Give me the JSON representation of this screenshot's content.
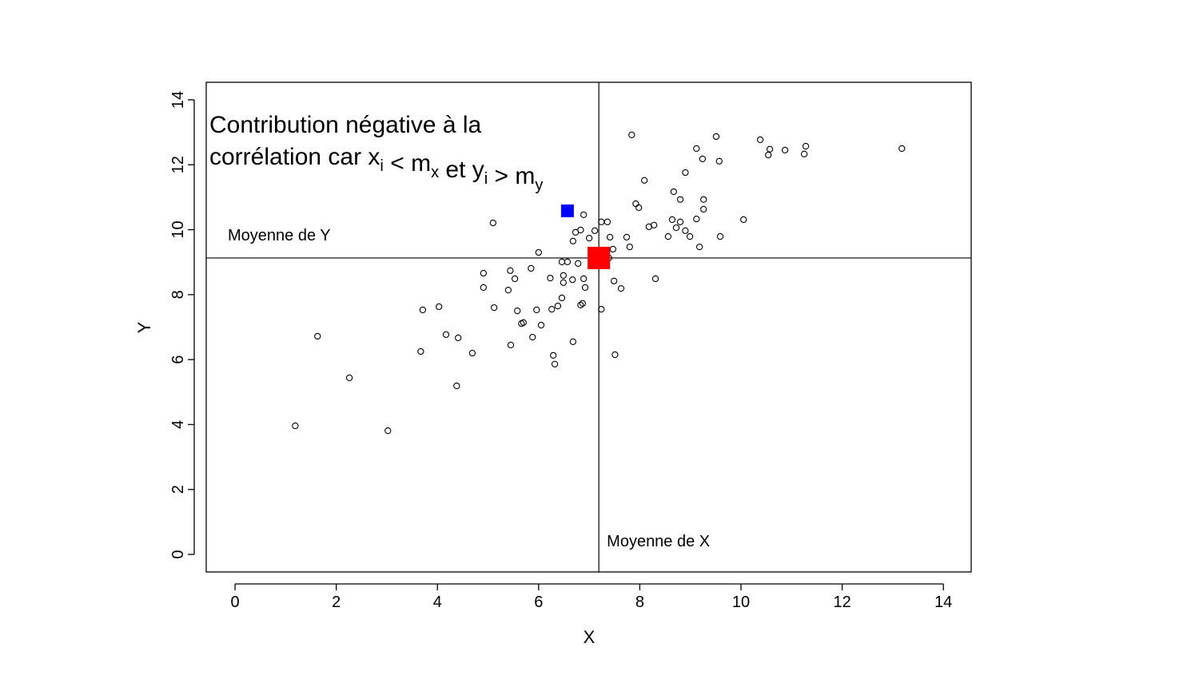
{
  "chart_data": {
    "type": "scatter",
    "x_label": "X",
    "y_label": "Y",
    "xlim": [
      -0.57,
      14.55
    ],
    "ylim": [
      -0.54,
      14.54
    ],
    "xticks": [
      0,
      2,
      4,
      6,
      8,
      10,
      12,
      14
    ],
    "yticks": [
      0,
      2,
      4,
      6,
      8,
      10,
      12,
      14
    ],
    "color": "#000000",
    "x": [
      1.19,
      1.63,
      2.26,
      3.02,
      3.71,
      3.67,
      4.03,
      4.17,
      4.41,
      4.38,
      4.69,
      4.91,
      4.91,
      5.1,
      5.12,
      5.4,
      5.44,
      5.53,
      5.45,
      5.58,
      5.66,
      5.7,
      5.85,
      5.88,
      5.96,
      6.0,
      6.05,
      6.23,
      6.26,
      6.29,
      6.32,
      6.38,
      6.46,
      6.49,
      6.49,
      6.46,
      6.57,
      6.67,
      6.68,
      6.68,
      6.73,
      6.83,
      6.78,
      6.83,
      6.87,
      6.89,
      6.89,
      6.92,
      7.0,
      7.11,
      7.24,
      7.36,
      7.41,
      7.24,
      7.39,
      7.47,
      7.49,
      7.51,
      7.63,
      7.74,
      7.8,
      7.84,
      7.92,
      7.98,
      8.09,
      8.18,
      8.28,
      8.31,
      8.56,
      8.64,
      8.67,
      8.72,
      8.8,
      8.8,
      8.9,
      8.9,
      8.99,
      9.12,
      9.12,
      9.18,
      9.24,
      9.26,
      9.26,
      9.51,
      9.57,
      9.59,
      10.05,
      10.38,
      10.57,
      10.54,
      10.87,
      11.25,
      11.28,
      13.18
    ],
    "values": [
      3.96,
      6.72,
      5.44,
      3.81,
      7.53,
      6.25,
      7.63,
      6.77,
      6.67,
      5.19,
      6.2,
      8.66,
      8.22,
      10.21,
      7.6,
      8.14,
      8.74,
      8.49,
      6.45,
      7.5,
      7.11,
      7.14,
      8.81,
      6.69,
      7.53,
      9.3,
      7.06,
      8.51,
      7.55,
      6.13,
      5.86,
      7.65,
      9.01,
      8.59,
      8.37,
      7.9,
      9.01,
      8.46,
      6.55,
      9.65,
      9.92,
      9.99,
      8.96,
      7.68,
      7.73,
      10.46,
      8.49,
      8.22,
      9.74,
      9.97,
      10.24,
      10.24,
      9.77,
      7.55,
      9.13,
      9.4,
      8.42,
      6.15,
      8.19,
      9.77,
      9.47,
      12.92,
      10.8,
      10.68,
      11.52,
      10.09,
      10.14,
      8.49,
      9.79,
      10.31,
      11.17,
      10.06,
      10.93,
      10.24,
      9.97,
      11.76,
      9.79,
      12.5,
      10.33,
      9.47,
      12.18,
      10.63,
      10.93,
      12.87,
      12.11,
      9.79,
      10.31,
      12.77,
      12.48,
      12.3,
      12.45,
      12.33,
      12.57,
      12.5
    ],
    "mean_x": 7.19,
    "mean_y": 9.13,
    "mean_x_label": "Moyenne de X",
    "mean_y_label": "Moyenne de Y",
    "mean_color": "#ff0000",
    "highlight": {
      "x": 6.57,
      "y": 10.58,
      "color": "#0000ff"
    },
    "annotation": [
      [
        {
          "text": "Contribution négative à la"
        }
      ],
      [
        {
          "text": "corrélation car x"
        },
        {
          "sub": "i"
        },
        {
          "text": " < m"
        },
        {
          "sub": "x"
        },
        {
          "text": " et y"
        },
        {
          "sub": "i"
        },
        {
          "text": " > m"
        },
        {
          "sub": "y"
        }
      ]
    ]
  }
}
